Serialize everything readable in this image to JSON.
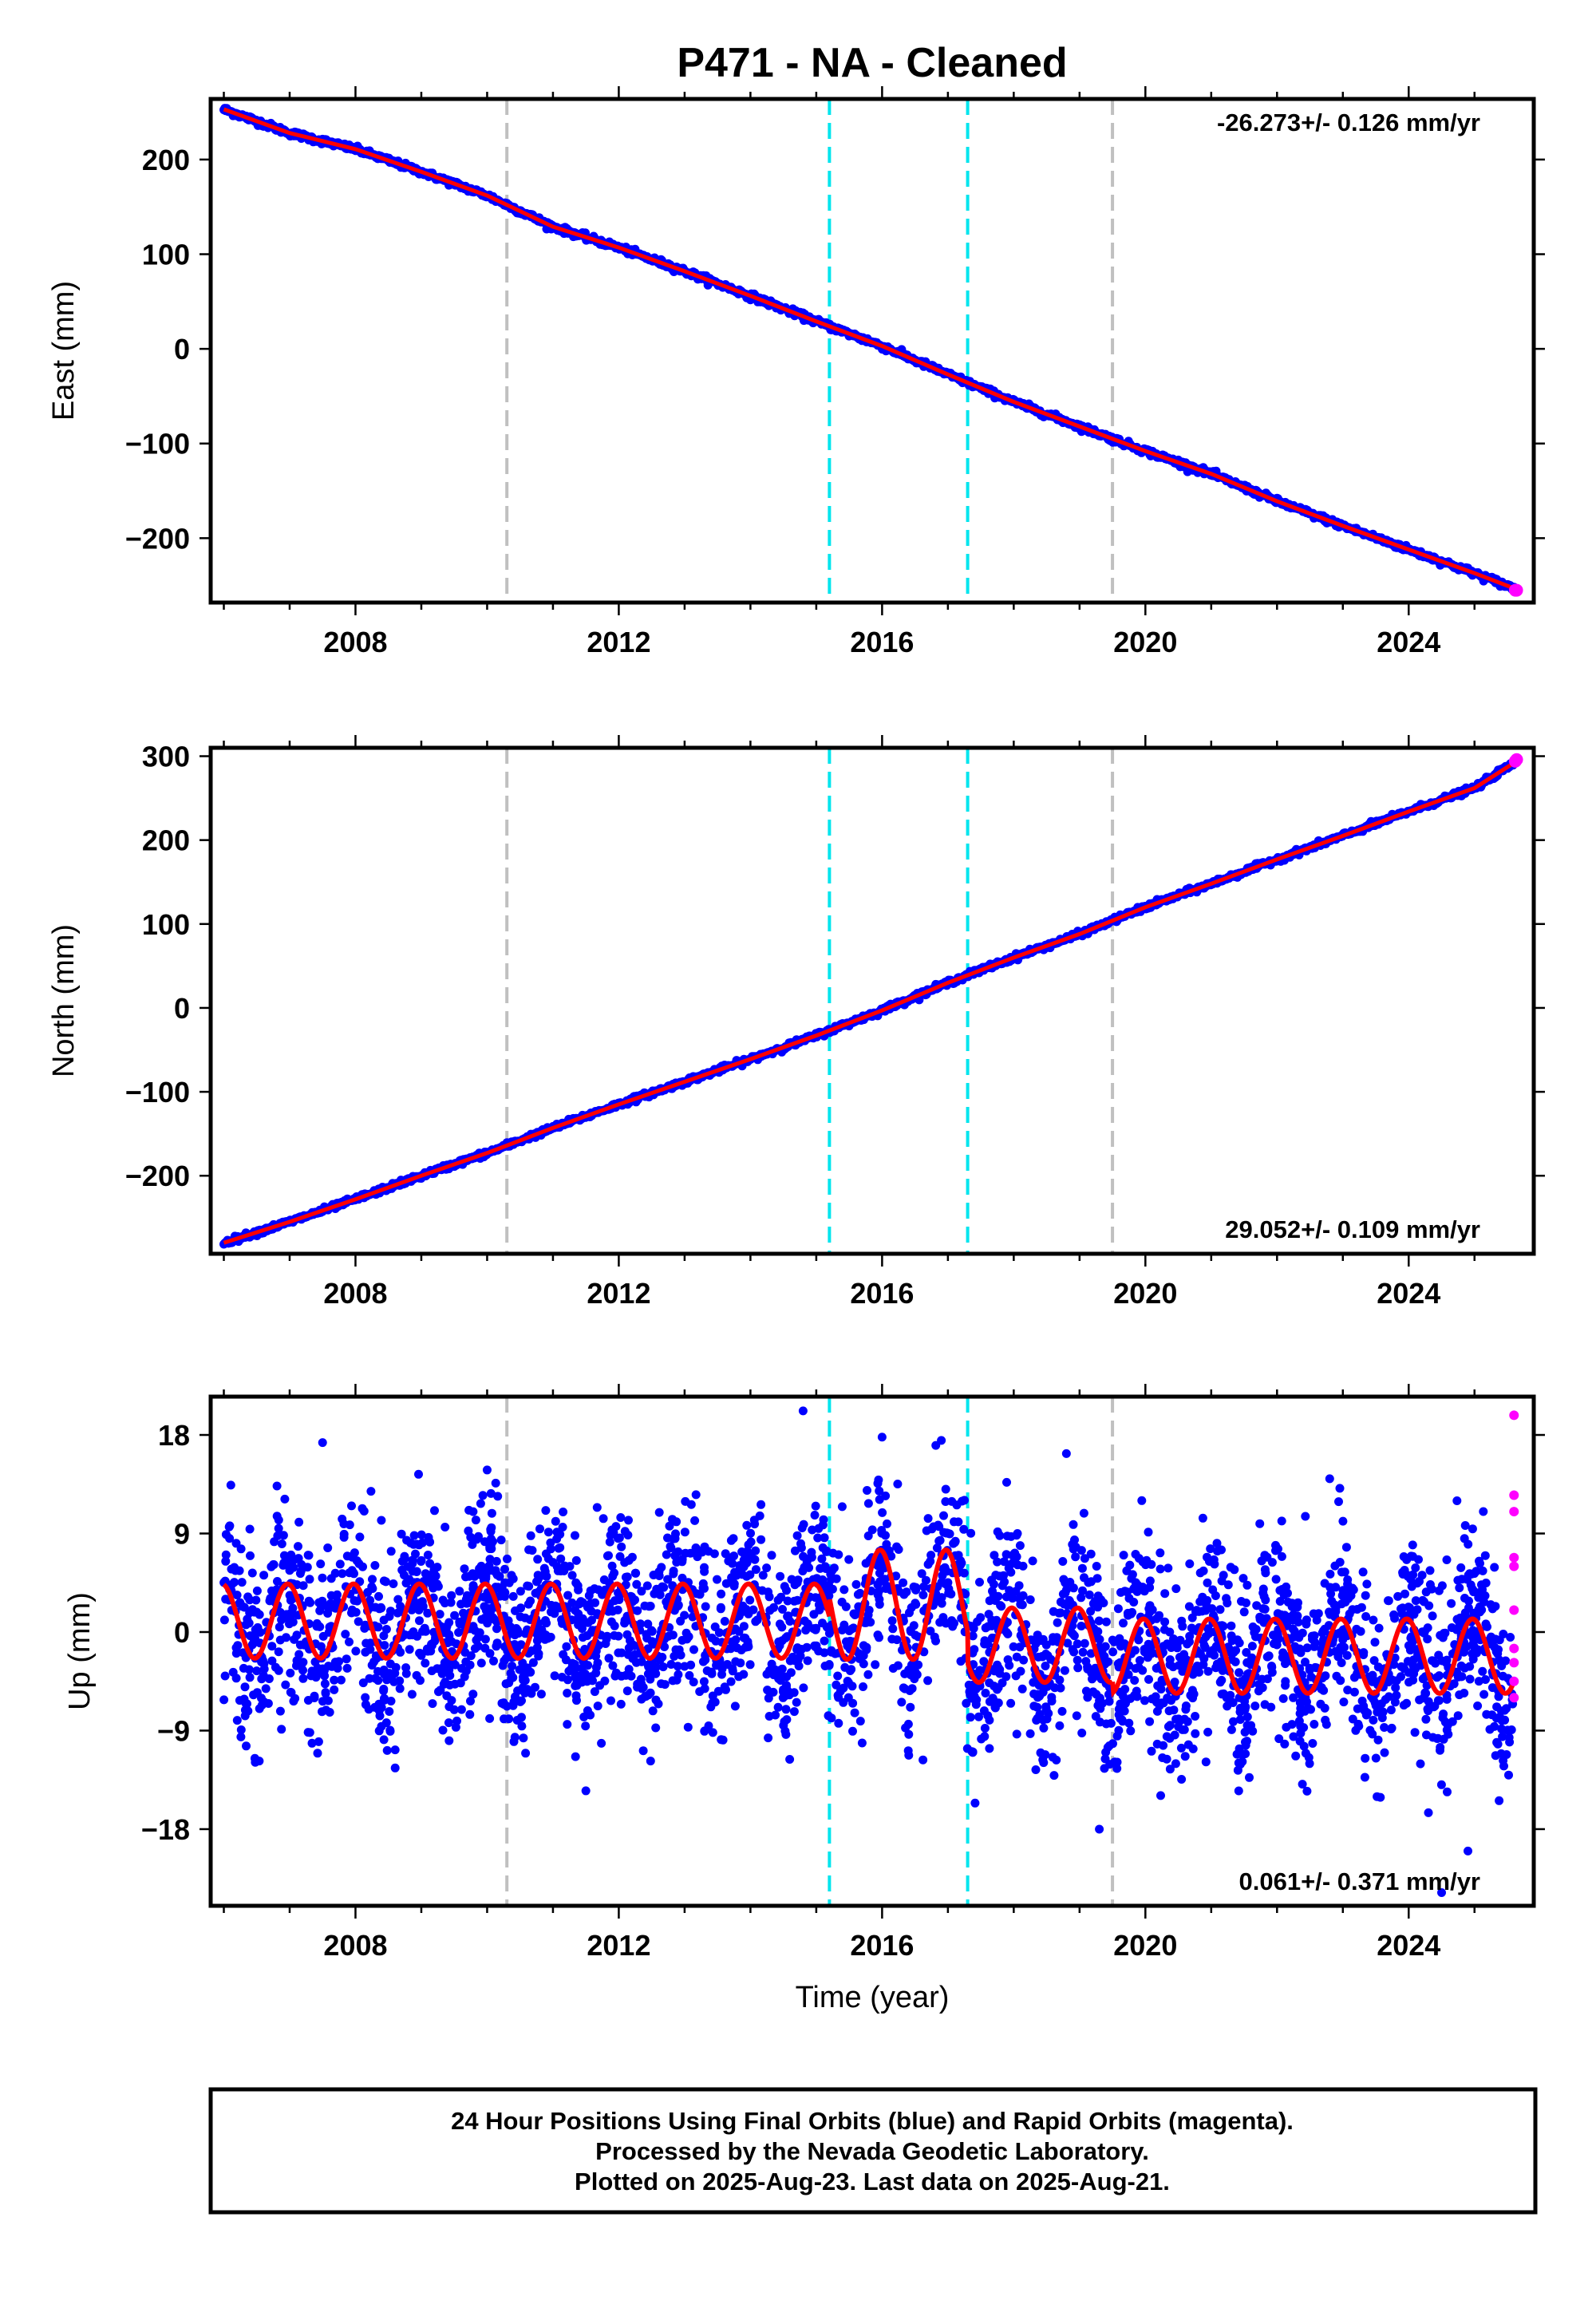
{
  "title": "P471  - NA - Cleaned",
  "xlabel": "Time (year)",
  "footer": {
    "line1": "24 Hour Positions Using Final Orbits (blue) and Rapid Orbits (magenta).",
    "line2": "Processed by the Nevada Geodetic Laboratory.",
    "line3": "Plotted on 2025-Aug-23. Last data on 2025-Aug-21."
  },
  "colors": {
    "final_orbits": "#0000ff",
    "rapid_orbits": "#ff00ff",
    "model": "#ff0000",
    "equipment_change": "#c0c0c0",
    "earthquake": "#00e5ee"
  },
  "chart_data": [
    {
      "type": "scatter",
      "panel": "east",
      "ylabel": "East (mm)",
      "rate": "-26.273+/- 0.126 mm/yr",
      "xlim": [
        2005.8,
        2025.9
      ],
      "ylim": [
        -268,
        264
      ],
      "xticks": [
        2008,
        2012,
        2016,
        2020,
        2024
      ],
      "yticks": [
        -200,
        -100,
        0,
        100,
        200
      ],
      "yticklabels": [
        "−200",
        "−100",
        "0",
        "100",
        "200"
      ],
      "vlines_gray": [
        2010.3,
        2019.5
      ],
      "vlines_cyan": [
        2015.2,
        2017.3
      ],
      "series": [
        {
          "name": "final",
          "x": [
            2006.0,
            2007.0,
            2008.0,
            2009.0,
            2010.0,
            2011.0,
            2012.0,
            2013.0,
            2014.0,
            2015.0,
            2016.0,
            2017.0,
            2018.0,
            2019.0,
            2020.0,
            2021.0,
            2022.0,
            2023.0,
            2024.0,
            2025.0,
            2025.6
          ],
          "y": [
            253,
            228,
            211,
            187,
            162,
            129,
            107,
            82,
            56,
            29,
            3,
            -27,
            -56,
            -82,
            -108,
            -132,
            -161,
            -187,
            -212,
            -237,
            -253
          ]
        },
        {
          "name": "rapid",
          "x": [
            2025.62,
            2025.64
          ],
          "y": [
            -255,
            -255
          ]
        }
      ]
    },
    {
      "type": "scatter",
      "panel": "north",
      "ylabel": "North (mm)",
      "rate": "29.052+/- 0.109 mm/yr",
      "xlim": [
        2005.8,
        2025.9
      ],
      "ylim": [
        -293,
        310
      ],
      "xticks": [
        2008,
        2012,
        2016,
        2020,
        2024
      ],
      "yticks": [
        -200,
        -100,
        0,
        100,
        200,
        300
      ],
      "yticklabels": [
        "−200",
        "−100",
        "0",
        "100",
        "200",
        "300"
      ],
      "vlines_gray": [
        2010.3,
        2019.5
      ],
      "vlines_cyan": [
        2015.2,
        2017.3
      ],
      "series": [
        {
          "name": "final",
          "x": [
            2006.0,
            2007.0,
            2008.0,
            2009.0,
            2010.0,
            2011.0,
            2012.0,
            2013.0,
            2014.0,
            2015.0,
            2016.0,
            2017.0,
            2018.0,
            2019.0,
            2020.0,
            2021.0,
            2022.0,
            2023.0,
            2024.0,
            2025.0,
            2025.6
          ],
          "y": [
            -280,
            -255,
            -228,
            -200,
            -173,
            -143,
            -115,
            -88,
            -61,
            -33,
            -3,
            30,
            60,
            88,
            120,
            148,
            177,
            205,
            234,
            262,
            292
          ]
        },
        {
          "name": "rapid",
          "x": [
            2025.62,
            2025.64
          ],
          "y": [
            294,
            296
          ]
        }
      ]
    },
    {
      "type": "scatter",
      "panel": "up",
      "ylabel": "Up (mm)",
      "rate": "0.061+/- 0.371 mm/yr",
      "xlim": [
        2005.8,
        2025.9
      ],
      "ylim": [
        -25,
        21.5
      ],
      "xticks": [
        2008,
        2012,
        2016,
        2020,
        2024
      ],
      "yticks": [
        -18,
        -9,
        0,
        9,
        18
      ],
      "yticklabels": [
        "−18",
        "−9",
        "0",
        "9",
        "18"
      ],
      "vlines_gray": [
        2010.3,
        2019.5
      ],
      "vlines_cyan": [
        2015.2,
        2017.3
      ],
      "model": {
        "segments": [
          {
            "x0": 2006.0,
            "x1": 2015.2,
            "offset": 1.0,
            "trend": 0.0,
            "amp": 3.4
          },
          {
            "x0": 2015.2,
            "x1": 2017.3,
            "offset": 2.5,
            "trend": 0.0,
            "amp": 5.0
          },
          {
            "x0": 2017.3,
            "x1": 2019.5,
            "offset": -1.2,
            "trend": 0.0,
            "amp": 3.4
          },
          {
            "x0": 2019.5,
            "x1": 2025.6,
            "offset": -2.2,
            "trend": 0.0,
            "amp": 3.4
          }
        ],
        "phase_year": 0.72
      },
      "spread_mm": 4.2,
      "outliers": [
        {
          "x": 2007.5,
          "y": 17.3
        },
        {
          "x": 2014.8,
          "y": 20.2
        },
        {
          "x": 2016.0,
          "y": 17.8
        },
        {
          "x": 2016.9,
          "y": 17.5
        },
        {
          "x": 2011.5,
          "y": -14.5
        },
        {
          "x": 2019.3,
          "y": -18.0
        },
        {
          "x": 2024.3,
          "y": -16.5
        },
        {
          "x": 2024.5,
          "y": -23.8
        },
        {
          "x": 2024.9,
          "y": -20.0
        },
        {
          "x": 2010.0,
          "y": 14.8
        },
        {
          "x": 2022.8,
          "y": 14.0
        },
        {
          "x": 2018.8,
          "y": 16.3
        }
      ],
      "series": [
        {
          "name": "rapid",
          "x": [
            2025.6,
            2025.6,
            2025.6,
            2025.6,
            2025.6,
            2025.6,
            2025.6,
            2025.6,
            2025.6,
            2025.6
          ],
          "y": [
            19.8,
            12.5,
            11.0,
            6.8,
            6.0,
            2.0,
            -1.5,
            -2.8,
            -4.5,
            -6.0
          ]
        }
      ]
    }
  ]
}
